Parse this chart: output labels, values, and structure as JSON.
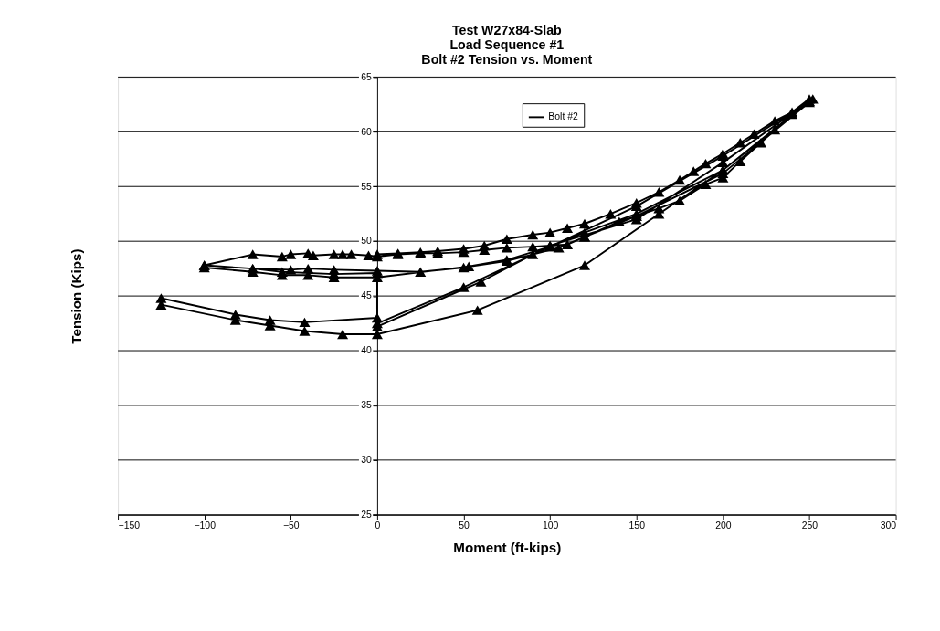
{
  "chart_data": {
    "type": "line",
    "title": "Test W27x84-Slab\nLoad Sequence #1\nBolt #2 Tension vs. Moment",
    "xlabel": "Moment (ft-kips)",
    "ylabel": "Tension (Kips)",
    "series": [
      {
        "name": "Bolt #2",
        "color": "#000000",
        "x": [
          0,
          12,
          25,
          35,
          50,
          62,
          75,
          90,
          100,
          110,
          120,
          135,
          150,
          163,
          175,
          183,
          190,
          200,
          210,
          218,
          230,
          240,
          250,
          240,
          230,
          222,
          210,
          200,
          190,
          175,
          163,
          150,
          140,
          120,
          110,
          100,
          90,
          75,
          62,
          50,
          35,
          25,
          12,
          0,
          -5,
          -15,
          -20,
          -25,
          -37,
          -40,
          -50,
          -55,
          -72,
          -100,
          -100,
          -72,
          -55,
          -40,
          -25,
          0,
          53,
          75,
          100,
          120,
          150,
          200,
          250,
          200,
          150,
          120,
          105,
          90,
          75,
          50,
          25,
          0,
          -25,
          -40,
          -50,
          -72,
          -100,
          -72,
          -55,
          -25,
          0,
          0,
          -42,
          -62,
          -82,
          -125,
          -125,
          -82,
          -62,
          -42,
          -20,
          0,
          58,
          120,
          163,
          200,
          250,
          200,
          150,
          100,
          60,
          0,
          0,
          50,
          100,
          150,
          200,
          252
        ],
        "values": [
          48.8,
          48.9,
          49,
          49.1,
          49.3,
          49.6,
          50.2,
          50.6,
          50.8,
          51.2,
          51.6,
          52.5,
          53.5,
          54.5,
          55.6,
          56.4,
          57.1,
          58,
          59,
          59.8,
          61,
          61.8,
          63,
          61.6,
          60.2,
          59,
          57.3,
          55.8,
          55.2,
          53.7,
          53,
          52.3,
          51.8,
          50.4,
          49.7,
          49.6,
          49.5,
          49.4,
          49.2,
          49,
          48.9,
          48.9,
          48.8,
          48.6,
          48.7,
          48.8,
          48.8,
          48.8,
          48.7,
          48.9,
          48.8,
          48.6,
          48.8,
          47.8,
          47.6,
          47.2,
          46.9,
          46.9,
          46.7,
          46.7,
          47.7,
          48.3,
          49.5,
          50.8,
          52.5,
          56.5,
          62.7,
          56.2,
          52.3,
          50.4,
          49.4,
          48.8,
          48.2,
          47.6,
          47.2,
          47.3,
          47.4,
          47.5,
          47.4,
          47.5,
          47.8,
          47.5,
          47.2,
          47,
          47.1,
          43,
          42.6,
          42.8,
          43.3,
          44.8,
          44.2,
          42.8,
          42.3,
          41.8,
          41.5,
          41.5,
          43.7,
          47.8,
          52.5,
          56.5,
          62.8,
          57.2,
          52,
          49.6,
          46.3,
          42.2,
          42.5,
          45.8,
          49.5,
          53.2,
          57.8,
          63
        ]
      }
    ],
    "xlim": [
      -150,
      300
    ],
    "xticks": [
      -150,
      -100,
      -50,
      0,
      50,
      100,
      150,
      200,
      250,
      300
    ],
    "ylim": [
      25,
      65
    ],
    "yticks": [
      25,
      30,
      35,
      40,
      45,
      50,
      55,
      60,
      65
    ],
    "grid": "y",
    "legend": "top",
    "marker": "triangle",
    "line_style": "solid"
  }
}
